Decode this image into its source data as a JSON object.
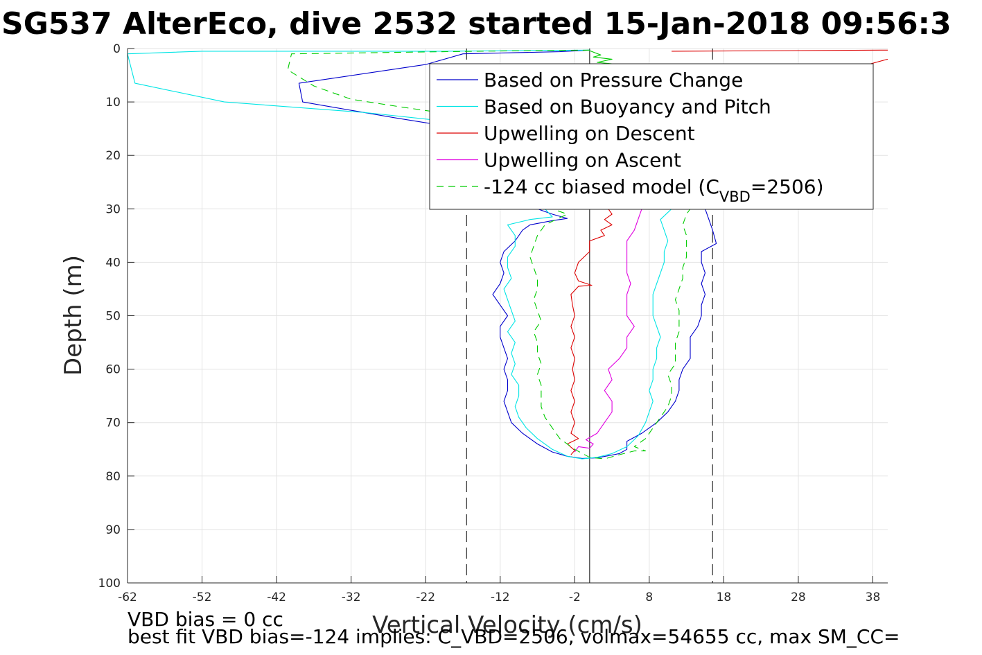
{
  "chart_data": {
    "type": "line",
    "title": "SG537 AlterEco, dive 2532 started 15-Jan-2018 09:56:3",
    "xlabel": "Vertical Velocity (cm/s)",
    "ylabel": "Depth (m)",
    "xlim": [
      -62,
      40
    ],
    "ylim": [
      0,
      100
    ],
    "y_reversed": true,
    "grid": true,
    "legend_position": "top-right",
    "xticks": [
      "-62",
      "-52",
      "-42",
      "-32",
      "-22",
      "-12",
      "-2",
      "8",
      "18",
      "28",
      "38"
    ],
    "yticks": [
      "0",
      "10",
      "20",
      "30",
      "40",
      "50",
      "60",
      "70",
      "80",
      "90",
      "100"
    ],
    "reference_lines": [
      {
        "x": -16.5,
        "style": "dashed",
        "color": "#404040"
      },
      {
        "x": 0,
        "style": "solid",
        "color": "#404040"
      },
      {
        "x": 16.5,
        "style": "dashed",
        "color": "#404040"
      }
    ],
    "series": [
      {
        "name": "Based on Pressure Change",
        "color": "#0000cc",
        "dash": "solid",
        "points": [
          [
            0,
            0.3
          ],
          [
            -4,
            0.6
          ],
          [
            -17,
            1
          ],
          [
            -22,
            3
          ],
          [
            -39,
            6.5
          ],
          [
            -38.5,
            10
          ],
          [
            -26,
            13
          ],
          [
            -17,
            15
          ],
          [
            -10,
            16
          ],
          [
            -10,
            17
          ],
          [
            -7,
            30
          ],
          [
            -5,
            31
          ],
          [
            -3,
            31.8
          ],
          [
            -5,
            32.2
          ],
          [
            -8,
            33
          ],
          [
            -9,
            34
          ],
          [
            -10,
            36
          ],
          [
            -11.5,
            38
          ],
          [
            -12,
            40
          ],
          [
            -11.5,
            42
          ],
          [
            -12,
            44
          ],
          [
            -13,
            46
          ],
          [
            -12,
            48
          ],
          [
            -11,
            50
          ],
          [
            -12,
            52
          ],
          [
            -12,
            54
          ],
          [
            -11.5,
            56
          ],
          [
            -11,
            58
          ],
          [
            -11.5,
            60
          ],
          [
            -11,
            62
          ],
          [
            -11,
            64
          ],
          [
            -11.5,
            66
          ],
          [
            -11,
            68
          ],
          [
            -10.5,
            70
          ],
          [
            -9,
            72
          ],
          [
            -7,
            74
          ],
          [
            -5,
            75.5
          ],
          [
            -3,
            76.3
          ],
          [
            -1,
            76.7
          ],
          [
            1,
            76.6
          ],
          [
            4,
            75.8
          ],
          [
            5,
            75
          ],
          [
            5,
            73.5
          ],
          [
            7,
            72
          ],
          [
            9,
            70
          ],
          [
            10.5,
            68
          ],
          [
            11.5,
            66
          ],
          [
            12,
            64
          ],
          [
            12,
            62
          ],
          [
            12.5,
            60
          ],
          [
            13.5,
            58
          ],
          [
            13.5,
            56
          ],
          [
            13.5,
            54
          ],
          [
            14.5,
            52
          ],
          [
            15,
            50
          ],
          [
            15,
            48
          ],
          [
            15.5,
            46
          ],
          [
            15,
            44
          ],
          [
            15.5,
            42
          ],
          [
            15,
            40
          ],
          [
            15,
            38
          ],
          [
            17,
            36.5
          ],
          [
            16.5,
            34
          ],
          [
            16,
            32
          ],
          [
            15.5,
            30
          ]
        ]
      },
      {
        "name": "Based on Buoyancy and Pitch",
        "color": "#00e5e5",
        "dash": "solid",
        "points": [
          [
            0,
            0.3
          ],
          [
            -20,
            0.5
          ],
          [
            -52,
            0.5
          ],
          [
            -62,
            1
          ],
          [
            -61,
            6.5
          ],
          [
            -49,
            10
          ],
          [
            -30,
            12
          ],
          [
            -20,
            13.5
          ],
          [
            -14,
            15
          ],
          [
            -10,
            16
          ],
          [
            -10,
            17
          ],
          [
            -6,
            30
          ],
          [
            -5,
            31.5
          ],
          [
            -8,
            32
          ],
          [
            -11,
            33
          ],
          [
            -10,
            35
          ],
          [
            -10,
            37
          ],
          [
            -11,
            39
          ],
          [
            -11,
            41
          ],
          [
            -10.5,
            43
          ],
          [
            -11.5,
            45
          ],
          [
            -11,
            47
          ],
          [
            -10.5,
            49
          ],
          [
            -10,
            51
          ],
          [
            -11,
            53
          ],
          [
            -10,
            55
          ],
          [
            -10.5,
            57
          ],
          [
            -10,
            59
          ],
          [
            -10.5,
            61
          ],
          [
            -9.5,
            63
          ],
          [
            -9.5,
            65
          ],
          [
            -10,
            67
          ],
          [
            -9.5,
            69
          ],
          [
            -8.5,
            71
          ],
          [
            -7,
            73
          ],
          [
            -5,
            75
          ],
          [
            -3,
            76.3
          ],
          [
            -1,
            76.8
          ],
          [
            1,
            76.5
          ],
          [
            3,
            75.8
          ],
          [
            5,
            74.5
          ],
          [
            6.5,
            72.5
          ],
          [
            7.5,
            70
          ],
          [
            8,
            68
          ],
          [
            8.5,
            66
          ],
          [
            8,
            64
          ],
          [
            8.5,
            62
          ],
          [
            8.5,
            60
          ],
          [
            9,
            58
          ],
          [
            9,
            56
          ],
          [
            9.5,
            54
          ],
          [
            9,
            52
          ],
          [
            8.5,
            50
          ],
          [
            8.5,
            48
          ],
          [
            8.5,
            46
          ],
          [
            9,
            44
          ],
          [
            9.5,
            42
          ],
          [
            10,
            40
          ],
          [
            10,
            38
          ],
          [
            10.5,
            36
          ],
          [
            10,
            34
          ],
          [
            9.5,
            32
          ],
          [
            11,
            30
          ]
        ]
      },
      {
        "name": "Upwelling on Descent",
        "color": "#dd0000",
        "dash": "solid",
        "points": [
          [
            -2.5,
            76
          ],
          [
            -2,
            75.2
          ],
          [
            -3,
            74
          ],
          [
            -1.5,
            73
          ],
          [
            -2.5,
            72
          ],
          [
            -2,
            70
          ],
          [
            -2.5,
            68
          ],
          [
            -2,
            66
          ],
          [
            -2.5,
            64
          ],
          [
            -2,
            62
          ],
          [
            -2.3,
            60
          ],
          [
            -2,
            58
          ],
          [
            -2.5,
            56
          ],
          [
            -2,
            54
          ],
          [
            -2.5,
            52
          ],
          [
            -2,
            50
          ],
          [
            -2.3,
            48
          ],
          [
            -2.5,
            46
          ],
          [
            -1.5,
            44.5
          ],
          [
            0.3,
            44.3
          ],
          [
            -1.5,
            43.5
          ],
          [
            -2,
            42
          ],
          [
            -1.5,
            40
          ],
          [
            0,
            38
          ],
          [
            0,
            36
          ],
          [
            2,
            35
          ],
          [
            1.5,
            34
          ],
          [
            3,
            33
          ],
          [
            2,
            32
          ],
          [
            3,
            31
          ],
          [
            2.5,
            30
          ]
        ]
      },
      {
        "name": "Upwelling on Descent (surface)",
        "color": "#dd0000",
        "dash": "solid",
        "points": [
          [
            11,
            0.5
          ],
          [
            40,
            0.3
          ]
        ]
      },
      {
        "name": "Upwelling on Descent (surface 2)",
        "color": "#dd0000",
        "dash": "solid",
        "points": [
          [
            40,
            2
          ],
          [
            36,
            3.5
          ]
        ]
      },
      {
        "name": "Upwelling on Ascent",
        "color": "#e000e0",
        "dash": "solid",
        "points": [
          [
            -2,
            75.5
          ],
          [
            -1.5,
            74.5
          ],
          [
            0,
            74.8
          ],
          [
            0.5,
            74
          ],
          [
            -0.5,
            73.2
          ],
          [
            1,
            72
          ],
          [
            2,
            70
          ],
          [
            3,
            68
          ],
          [
            3,
            66
          ],
          [
            2,
            64
          ],
          [
            3,
            62
          ],
          [
            2.5,
            60
          ],
          [
            4,
            58
          ],
          [
            5,
            56
          ],
          [
            5,
            54
          ],
          [
            6,
            52
          ],
          [
            5,
            50
          ],
          [
            5,
            48
          ],
          [
            5,
            46
          ],
          [
            5.5,
            44
          ],
          [
            5,
            42
          ],
          [
            5,
            40
          ],
          [
            5,
            38
          ],
          [
            5,
            36
          ],
          [
            6,
            34
          ],
          [
            6.5,
            32
          ],
          [
            7,
            30
          ]
        ]
      },
      {
        "name": "-124 cc biased model (C_VBD=2506)",
        "color": "#00cc00",
        "dash": "dashed",
        "points": [
          [
            0,
            0.3
          ],
          [
            -15,
            0.5
          ],
          [
            -40,
            1
          ],
          [
            -40.5,
            4
          ],
          [
            -37,
            7
          ],
          [
            -32,
            9.5
          ],
          [
            -25,
            11
          ],
          [
            -20,
            12
          ],
          [
            -14,
            13
          ],
          [
            -10,
            14.5
          ],
          [
            -5,
            30
          ],
          [
            -3,
            31
          ],
          [
            -4.5,
            32
          ],
          [
            -6,
            33
          ],
          [
            -7,
            35
          ],
          [
            -7.5,
            37
          ],
          [
            -8,
            39
          ],
          [
            -7.5,
            41
          ],
          [
            -7,
            43
          ],
          [
            -7,
            45
          ],
          [
            -7.5,
            47
          ],
          [
            -7,
            49
          ],
          [
            -6.5,
            51
          ],
          [
            -7.5,
            53
          ],
          [
            -7,
            55
          ],
          [
            -7,
            57
          ],
          [
            -6.5,
            59
          ],
          [
            -7,
            61
          ],
          [
            -6.5,
            63
          ],
          [
            -6.5,
            65
          ],
          [
            -6.5,
            67
          ],
          [
            -6,
            69
          ],
          [
            -5,
            71
          ],
          [
            -4,
            73
          ],
          [
            -2,
            75
          ],
          [
            0,
            76.5
          ],
          [
            2,
            76.8
          ],
          [
            4,
            76
          ],
          [
            6,
            75.3
          ],
          [
            7.5,
            75.3
          ],
          [
            6,
            74.5
          ],
          [
            7.5,
            73
          ],
          [
            8.5,
            71
          ],
          [
            9.5,
            69
          ],
          [
            10.5,
            67
          ],
          [
            11,
            65
          ],
          [
            11,
            63
          ],
          [
            10.5,
            61
          ],
          [
            11.5,
            59
          ],
          [
            11.5,
            57
          ],
          [
            11.5,
            55
          ],
          [
            12,
            53
          ],
          [
            12,
            51
          ],
          [
            12,
            49
          ],
          [
            11.5,
            47
          ],
          [
            12,
            45
          ],
          [
            12.5,
            43
          ],
          [
            12.5,
            41
          ],
          [
            13,
            39
          ],
          [
            13,
            37
          ],
          [
            13,
            35
          ],
          [
            12.5,
            33
          ],
          [
            13,
            31
          ],
          [
            13.5,
            30
          ]
        ]
      },
      {
        "name": "surface spikes",
        "color": "#00cc00",
        "dash": "solid",
        "points": [
          [
            0,
            0.4
          ],
          [
            1.5,
            1.2
          ],
          [
            0.5,
            1.6
          ],
          [
            3,
            2
          ],
          [
            1,
            2.6
          ],
          [
            4,
            3
          ],
          [
            1,
            3.5
          ]
        ]
      }
    ],
    "legend": [
      {
        "label": "Based on Pressure Change",
        "color": "#0000cc",
        "dash": "solid"
      },
      {
        "label": "Based on Buoyancy and Pitch",
        "color": "#00e5e5",
        "dash": "solid"
      },
      {
        "label": "Upwelling on Descent",
        "color": "#dd0000",
        "dash": "solid"
      },
      {
        "label": "Upwelling on Ascent",
        "color": "#e000e0",
        "dash": "solid"
      },
      {
        "label_main": "-124 cc biased model (C",
        "label_sub": "VBD",
        "label_tail": "=2506)",
        "color": "#00cc00",
        "dash": "dashed"
      }
    ]
  },
  "annotations": {
    "line1": "VBD bias = 0 cc",
    "line2": "best fit VBD bias=-124 implies: C_VBD=2506, volmax=54655 cc, max SM_CC="
  }
}
